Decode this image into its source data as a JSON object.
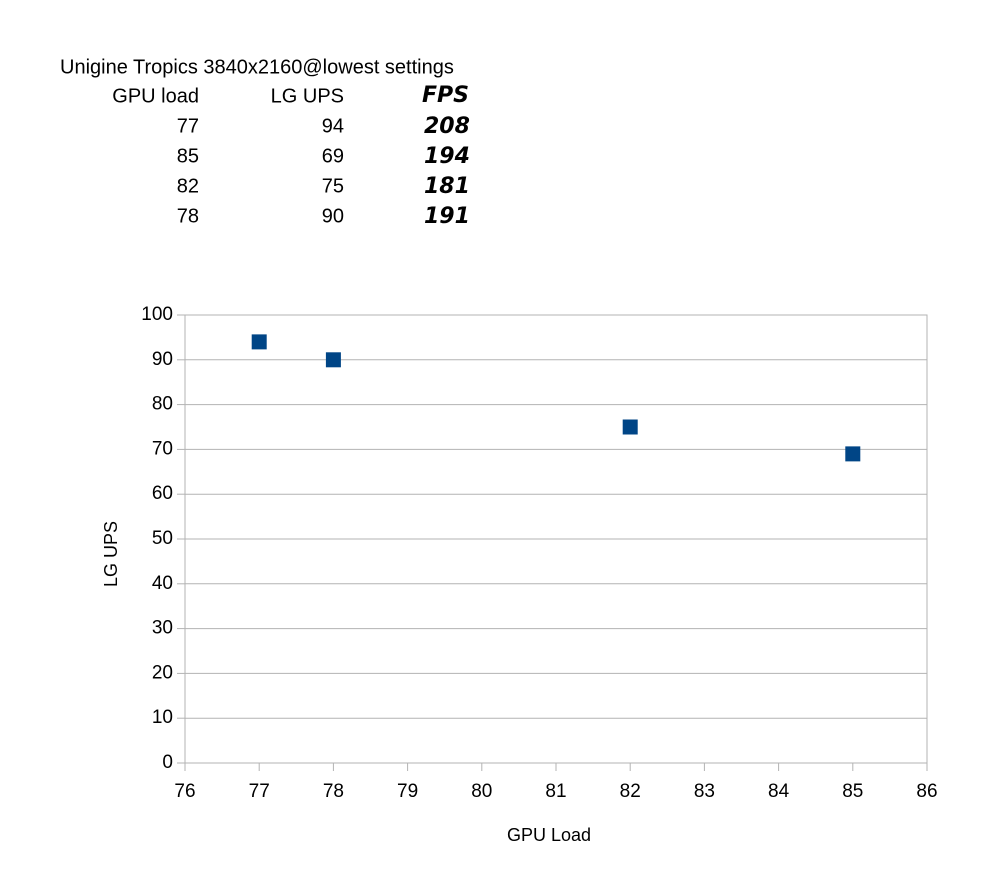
{
  "table": {
    "title": "Unigine Tropics 3840x2160@lowest  settings",
    "header": [
      "GPU load",
      "LG UPS",
      "FPS"
    ],
    "rows": [
      [
        77,
        94,
        208
      ],
      [
        85,
        69,
        194
      ],
      [
        82,
        75,
        181
      ],
      [
        78,
        90,
        191
      ]
    ]
  },
  "chart_data": {
    "type": "scatter",
    "x": [
      77,
      85,
      82,
      78
    ],
    "values": [
      94,
      69,
      75,
      90
    ],
    "color": "#004586",
    "xlabel": "GPU Load",
    "ylabel": "LG UPS",
    "xlim": [
      76,
      86
    ],
    "xticks": [
      76,
      77,
      78,
      79,
      80,
      81,
      82,
      83,
      84,
      85,
      86
    ],
    "ylim": [
      0,
      100
    ],
    "yticks": [
      0,
      10,
      20,
      30,
      40,
      50,
      60,
      70,
      80,
      90,
      100
    ],
    "grid": true
  }
}
